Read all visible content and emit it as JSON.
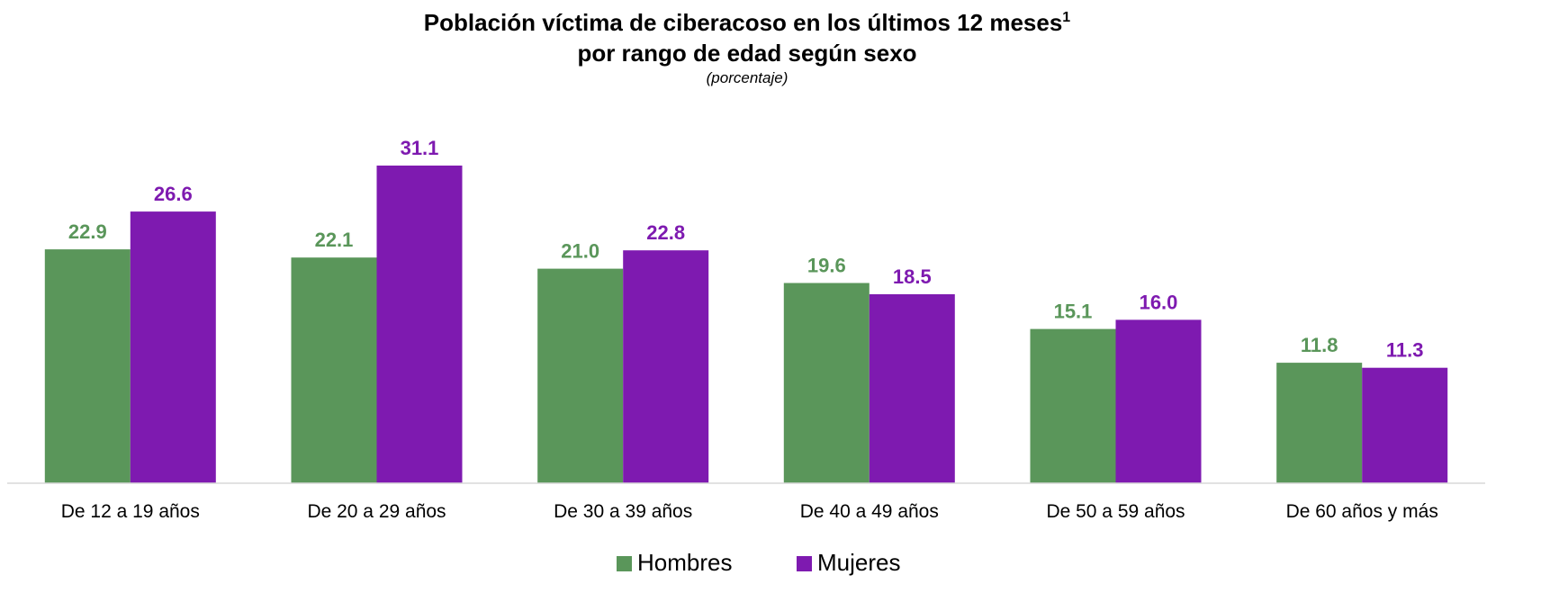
{
  "title_line1": "Población víctima de ciberacoso en los últimos 12 meses",
  "title_footnote": "1",
  "title_line2": "por rango de edad según sexo",
  "subtitle": "(porcentaje)",
  "chart_data": {
    "type": "bar",
    "title": "Población víctima de ciberacoso en los últimos 12 meses por rango de edad según sexo",
    "subtitle": "(porcentaje)",
    "categories": [
      "De 12 a 19 años",
      "De 20 a 29 años",
      "De 30 a 39 años",
      "De 40 a 49 años",
      "De 50 a 59 años",
      "De 60 años y más"
    ],
    "series": [
      {
        "name": "Hombres",
        "color": "#5a965a",
        "values": [
          22.9,
          22.1,
          21.0,
          19.6,
          15.1,
          11.8
        ],
        "labels": [
          "22.9",
          "22.1",
          "21.0",
          "19.6",
          "15.1",
          "11.8"
        ]
      },
      {
        "name": "Mujeres",
        "color": "#7e1ab0",
        "values": [
          26.6,
          31.1,
          22.8,
          18.5,
          16.0,
          11.3
        ],
        "labels": [
          "26.6",
          "31.1",
          "22.8",
          "18.5",
          "16.0",
          "11.3"
        ]
      }
    ],
    "xlabel": "",
    "ylabel": "",
    "ylim": [
      0,
      35
    ],
    "grid": false,
    "legend": "bottom-center"
  }
}
